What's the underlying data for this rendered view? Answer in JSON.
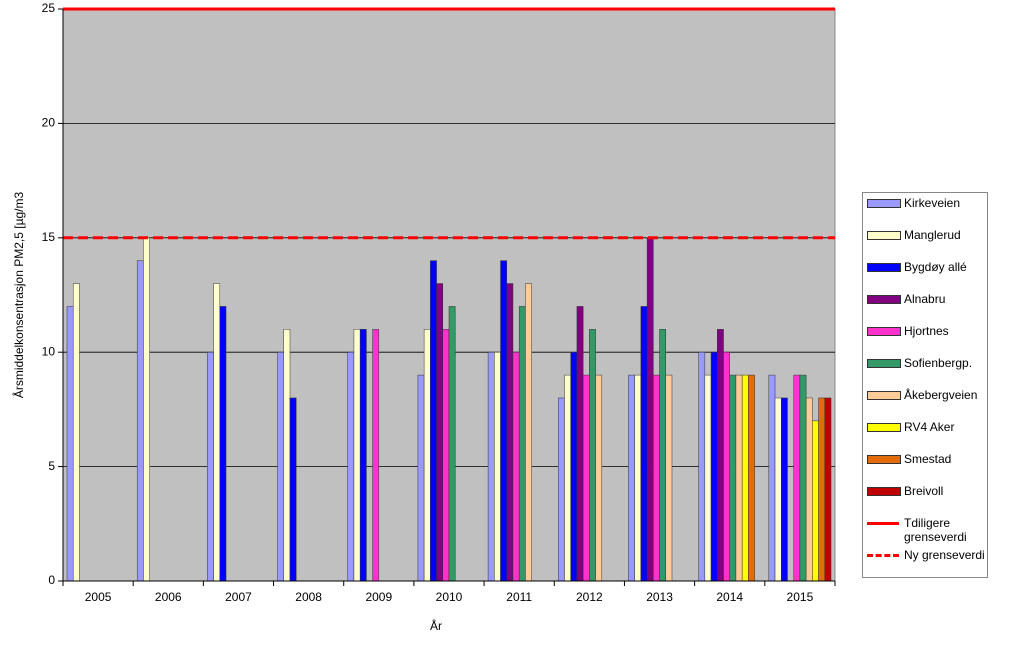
{
  "chart_data": {
    "type": "bar",
    "x_label": "År",
    "y_label": "Årsmiddelkonsentrasjon PM2,5 [µg/m3",
    "categories": [
      "2005",
      "2006",
      "2007",
      "2008",
      "2009",
      "2010",
      "2011",
      "2012",
      "2013",
      "2014",
      "2015"
    ],
    "series": [
      {
        "name": "Kirkeveien",
        "color": "#9999ff",
        "values": [
          12,
          14,
          10,
          10,
          10,
          9,
          10,
          8,
          9,
          10,
          9
        ]
      },
      {
        "name": "Manglerud",
        "color": "#ffffcc",
        "values": [
          13,
          15,
          13,
          11,
          11,
          11,
          10,
          9,
          9,
          9,
          8
        ]
      },
      {
        "name": "Bygdøy allé",
        "color": "#0000ff",
        "values": [
          null,
          null,
          12,
          8,
          11,
          14,
          14,
          10,
          12,
          10,
          8
        ]
      },
      {
        "name": "Alnabru",
        "color": "#800080",
        "values": [
          null,
          null,
          null,
          null,
          null,
          13,
          13,
          12,
          15,
          11,
          null
        ]
      },
      {
        "name": "Hjortnes",
        "color": "#ff33cc",
        "values": [
          null,
          null,
          null,
          null,
          11,
          11,
          10,
          9,
          9,
          10,
          9
        ]
      },
      {
        "name": "Sofienbergp.",
        "color": "#339966",
        "values": [
          null,
          null,
          null,
          null,
          null,
          12,
          12,
          11,
          11,
          9,
          9
        ]
      },
      {
        "name": "Åkebergveien",
        "color": "#ffcc99",
        "values": [
          null,
          null,
          null,
          null,
          null,
          null,
          13,
          9,
          9,
          9,
          8
        ]
      },
      {
        "name": "RV4 Aker",
        "color": "#ffff00",
        "values": [
          null,
          null,
          null,
          null,
          null,
          null,
          null,
          null,
          null,
          9,
          7
        ]
      },
      {
        "name": "Smestad",
        "color": "#e26b0a",
        "values": [
          null,
          null,
          null,
          null,
          null,
          null,
          null,
          null,
          null,
          9,
          8
        ]
      },
      {
        "name": "Breivoll",
        "color": "#c00000",
        "values": [
          null,
          null,
          null,
          null,
          null,
          null,
          null,
          null,
          null,
          null,
          8
        ]
      }
    ],
    "reference_lines": [
      {
        "name": "Tdiligere grenseverdi",
        "value": 25,
        "color": "#ff0000",
        "style": "solid"
      },
      {
        "name": "Ny grenseverdi",
        "value": 15,
        "color": "#ff0000",
        "style": "dashed"
      }
    ],
    "ylim": [
      0,
      25
    ],
    "yticks": [
      0,
      5,
      10,
      15,
      20,
      25
    ],
    "grid": true,
    "plot_background": "#c0c0c0",
    "legend": "right"
  }
}
